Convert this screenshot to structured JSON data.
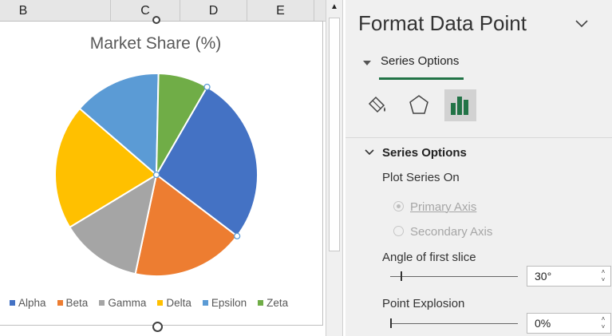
{
  "sheet": {
    "columns": [
      "B",
      "C",
      "D",
      "E"
    ]
  },
  "chart_data": {
    "type": "pie",
    "title": "Market Share (%)",
    "categories": [
      "Alpha",
      "Beta",
      "Gamma",
      "Delta",
      "Epsilon",
      "Zeta"
    ],
    "values": [
      27,
      18,
      13,
      20,
      14,
      8
    ],
    "colors": [
      "#4472c4",
      "#ed7d31",
      "#a5a5a5",
      "#ffc000",
      "#5b9bd5",
      "#70ad47"
    ],
    "start_angle_deg": 30,
    "selected_category": "Alpha",
    "legend_position": "bottom"
  },
  "pane": {
    "title": "Format Data Point",
    "tab_label": "Series Options",
    "section_title": "Series Options",
    "plot_series_on_label": "Plot Series On",
    "primary_axis_label": "Primary Axis",
    "secondary_axis_label": "Secondary Axis",
    "angle_label": "Angle of first slice",
    "angle_value": "30°",
    "angle_fraction": 0.0833,
    "explosion_label": "Point Explosion",
    "explosion_value": "0%",
    "explosion_fraction": 0,
    "icons": [
      "fill-line-icon",
      "effects-icon",
      "series-options-icon"
    ]
  }
}
